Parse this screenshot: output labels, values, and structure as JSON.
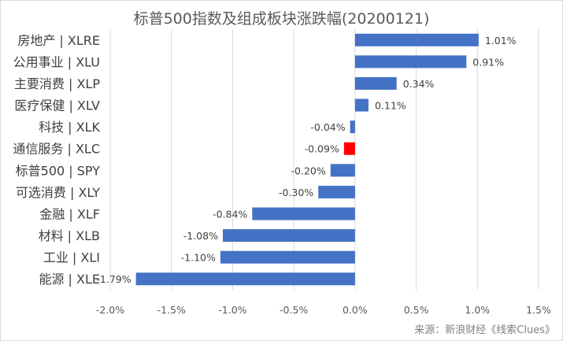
{
  "chart_data": {
    "type": "bar",
    "orientation": "horizontal",
    "title": "标普500指数及组成板块涨跌幅(20200121)",
    "categories": [
      "房地产 | XLRE",
      "公用事业 | XLU",
      "主要消费 | XLP",
      "医疗保健 | XLV",
      "科技 | XLK",
      "通信服务 | XLC",
      "标普500 | SPY",
      "可选消费 | XLY",
      "金融 | XLF",
      "材料 | XLB",
      "工业 | XLI",
      "能源 | XLE"
    ],
    "values": [
      1.01,
      0.91,
      0.34,
      0.11,
      -0.04,
      -0.09,
      -0.2,
      -0.3,
      -0.84,
      -1.08,
      -1.1,
      -1.79
    ],
    "data_labels": [
      "1.01%",
      "0.91%",
      "0.34%",
      "0.11%",
      "-0.04%",
      "-0.09%",
      "-0.20%",
      "-0.30%",
      "-0.84%",
      "-1.08%",
      "-1.10%",
      "-1.79%"
    ],
    "xlim": [
      -2.0,
      1.5
    ],
    "xticks": [
      -2.0,
      -1.5,
      -1.0,
      -0.5,
      0.0,
      0.5,
      1.0,
      1.5
    ],
    "xtick_labels": [
      "-2.0%",
      "-1.5%",
      "-1.0%",
      "-0.5%",
      "0.0%",
      "0.5%",
      "1.0%",
      "1.5%"
    ],
    "grid": true,
    "bar_color": "#4472c4",
    "highlight_color": "#ff0000",
    "highlight_category": "通信服务 | XLC",
    "source": "来源：新浪财经《线索Clues》"
  }
}
